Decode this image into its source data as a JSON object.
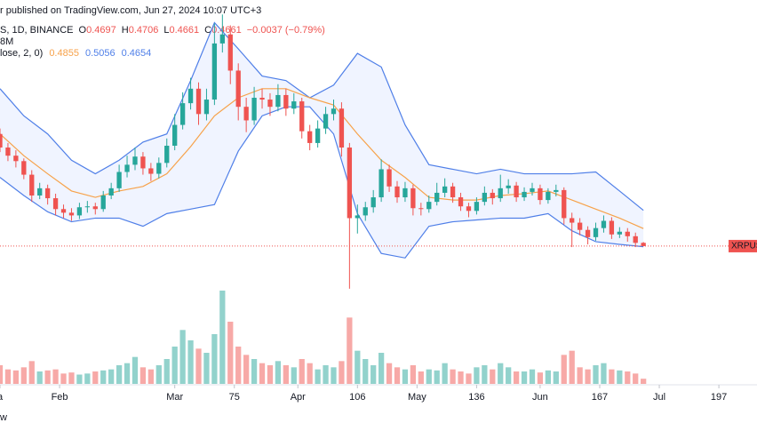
{
  "header": {
    "publish": "r published on TradingView.com, Jun 27, 2024 10:07 UTC+3",
    "symbol": "S, 1D, BINANCE",
    "ohlc": [
      {
        "label": "O",
        "value": "0.4697"
      },
      {
        "label": "H",
        "value": "0.4706"
      },
      {
        "label": "L",
        "value": "0.4661"
      },
      {
        "label": "C",
        "value": "0.4661"
      }
    ],
    "change": "−0.0037 (−0.79%)",
    "volume": "8M",
    "bb_label": "lose, 2, 0)",
    "bb_values": [
      {
        "value": "0.4855",
        "color": "#f7a24a"
      },
      {
        "value": "0.5056",
        "color": "#4f7fe8"
      },
      {
        "value": "0.4654",
        "color": "#4f7fe8"
      }
    ],
    "footer": "w"
  },
  "chart_data": {
    "type": "candlestick",
    "up_color": "#26a69a",
    "down_color": "#ef5350",
    "x": [
      16,
      18,
      20,
      22,
      24,
      26,
      28,
      30,
      32,
      34,
      36,
      38,
      40,
      42,
      44,
      46,
      48,
      50,
      52,
      54,
      56,
      58,
      60,
      62,
      64,
      66,
      68,
      70,
      72,
      74,
      76,
      78,
      80,
      82,
      84,
      86,
      88,
      90,
      92,
      94,
      96,
      98,
      100,
      102,
      104,
      106,
      108,
      110,
      112,
      114,
      116,
      118,
      120,
      122,
      124,
      126,
      128,
      130,
      132,
      134,
      136,
      138,
      140,
      142,
      144,
      146,
      148,
      150,
      152,
      154,
      156,
      158,
      160,
      162,
      164,
      166,
      168,
      170,
      172,
      174,
      176,
      178
    ],
    "ohlc": [
      [
        0.59,
        0.596,
        0.57,
        0.575
      ],
      [
        0.575,
        0.58,
        0.56,
        0.566
      ],
      [
        0.566,
        0.572,
        0.553,
        0.56
      ],
      [
        0.56,
        0.563,
        0.54,
        0.545
      ],
      [
        0.545,
        0.55,
        0.515,
        0.522
      ],
      [
        0.522,
        0.536,
        0.518,
        0.53
      ],
      [
        0.53,
        0.534,
        0.512,
        0.519
      ],
      [
        0.519,
        0.524,
        0.5,
        0.507
      ],
      [
        0.507,
        0.512,
        0.497,
        0.503
      ],
      [
        0.503,
        0.508,
        0.494,
        0.5
      ],
      [
        0.5,
        0.514,
        0.496,
        0.509
      ],
      [
        0.509,
        0.516,
        0.503,
        0.51
      ],
      [
        0.51,
        0.514,
        0.501,
        0.507
      ],
      [
        0.507,
        0.527,
        0.504,
        0.522
      ],
      [
        0.522,
        0.536,
        0.518,
        0.53
      ],
      [
        0.53,
        0.556,
        0.526,
        0.548
      ],
      [
        0.548,
        0.566,
        0.542,
        0.556
      ],
      [
        0.556,
        0.575,
        0.55,
        0.565
      ],
      [
        0.565,
        0.57,
        0.545,
        0.552
      ],
      [
        0.552,
        0.558,
        0.538,
        0.546
      ],
      [
        0.546,
        0.564,
        0.541,
        0.558
      ],
      [
        0.558,
        0.585,
        0.553,
        0.577
      ],
      [
        0.577,
        0.612,
        0.572,
        0.6
      ],
      [
        0.6,
        0.636,
        0.595,
        0.624
      ],
      [
        0.624,
        0.652,
        0.617,
        0.64
      ],
      [
        0.64,
        0.647,
        0.6,
        0.612
      ],
      [
        0.612,
        0.64,
        0.605,
        0.628
      ],
      [
        0.628,
        0.712,
        0.622,
        0.69
      ],
      [
        0.69,
        0.722,
        0.68,
        0.7
      ],
      [
        0.7,
        0.71,
        0.645,
        0.66
      ],
      [
        0.66,
        0.668,
        0.605,
        0.62
      ],
      [
        0.62,
        0.63,
        0.592,
        0.605
      ],
      [
        0.605,
        0.642,
        0.6,
        0.63
      ],
      [
        0.63,
        0.64,
        0.618,
        0.628
      ],
      [
        0.628,
        0.635,
        0.61,
        0.62
      ],
      [
        0.62,
        0.645,
        0.615,
        0.633
      ],
      [
        0.633,
        0.64,
        0.61,
        0.618
      ],
      [
        0.618,
        0.635,
        0.612,
        0.626
      ],
      [
        0.626,
        0.63,
        0.585,
        0.593
      ],
      [
        0.593,
        0.6,
        0.572,
        0.58
      ],
      [
        0.58,
        0.605,
        0.575,
        0.596
      ],
      [
        0.596,
        0.62,
        0.59,
        0.612
      ],
      [
        0.612,
        0.628,
        0.605,
        0.618
      ],
      [
        0.618,
        0.625,
        0.565,
        0.575
      ],
      [
        0.575,
        0.58,
        0.419,
        0.497
      ],
      [
        0.497,
        0.512,
        0.48,
        0.5
      ],
      [
        0.5,
        0.515,
        0.494,
        0.509
      ],
      [
        0.509,
        0.528,
        0.503,
        0.52
      ],
      [
        0.52,
        0.562,
        0.515,
        0.551
      ],
      [
        0.551,
        0.556,
        0.526,
        0.532
      ],
      [
        0.532,
        0.538,
        0.514,
        0.52
      ],
      [
        0.52,
        0.537,
        0.515,
        0.53
      ],
      [
        0.53,
        0.534,
        0.5,
        0.508
      ],
      [
        0.508,
        0.514,
        0.5,
        0.507
      ],
      [
        0.507,
        0.522,
        0.503,
        0.515
      ],
      [
        0.515,
        0.536,
        0.511,
        0.525
      ],
      [
        0.525,
        0.541,
        0.52,
        0.532
      ],
      [
        0.532,
        0.536,
        0.514,
        0.52
      ],
      [
        0.52,
        0.525,
        0.505,
        0.51
      ],
      [
        0.51,
        0.514,
        0.498,
        0.505
      ],
      [
        0.505,
        0.52,
        0.501,
        0.515
      ],
      [
        0.515,
        0.532,
        0.511,
        0.525
      ],
      [
        0.525,
        0.529,
        0.512,
        0.519
      ],
      [
        0.519,
        0.545,
        0.515,
        0.53
      ],
      [
        0.53,
        0.54,
        0.524,
        0.533
      ],
      [
        0.533,
        0.537,
        0.515,
        0.52
      ],
      [
        0.52,
        0.531,
        0.516,
        0.526
      ],
      [
        0.526,
        0.536,
        0.522,
        0.53
      ],
      [
        0.53,
        0.534,
        0.512,
        0.517
      ],
      [
        0.517,
        0.53,
        0.513,
        0.526
      ],
      [
        0.526,
        0.534,
        0.521,
        0.528
      ],
      [
        0.528,
        0.531,
        0.49,
        0.497
      ],
      [
        0.497,
        0.503,
        0.465,
        0.492
      ],
      [
        0.492,
        0.497,
        0.478,
        0.484
      ],
      [
        0.484,
        0.488,
        0.468,
        0.476
      ],
      [
        0.476,
        0.492,
        0.472,
        0.486
      ],
      [
        0.486,
        0.5,
        0.481,
        0.494
      ],
      [
        0.494,
        0.498,
        0.474,
        0.479
      ],
      [
        0.479,
        0.487,
        0.475,
        0.482
      ],
      [
        0.482,
        0.486,
        0.471,
        0.477
      ],
      [
        0.477,
        0.481,
        0.465,
        0.4697
      ],
      [
        0.4697,
        0.4706,
        0.4661,
        0.4661
      ]
    ],
    "volume": [
      900,
      700,
      650,
      800,
      1100,
      600,
      650,
      700,
      500,
      550,
      450,
      500,
      600,
      650,
      700,
      900,
      1000,
      1300,
      800,
      700,
      900,
      1200,
      1800,
      2600,
      2100,
      1700,
      1500,
      2400,
      4500,
      3000,
      1800,
      1400,
      1200,
      1000,
      900,
      1100,
      900,
      800,
      1200,
      1000,
      700,
      900,
      800,
      1100,
      3200,
      1600,
      1200,
      900,
      1500,
      1000,
      800,
      700,
      900,
      600,
      700,
      650,
      1000,
      700,
      600,
      500,
      800,
      900,
      700,
      1000,
      800,
      600,
      600,
      700,
      550,
      650,
      600,
      1400,
      1600,
      800,
      700,
      900,
      1000,
      700,
      650,
      600,
      500,
      250
    ],
    "volume_lim": [
      0,
      4500
    ],
    "bands_x": [
      16,
      22,
      28,
      34,
      40,
      46,
      52,
      58,
      64,
      70,
      76,
      82,
      88,
      94,
      100,
      106,
      112,
      118,
      124,
      130,
      136,
      142,
      148,
      154,
      160,
      166,
      172,
      178
    ],
    "bands": [
      {
        "color": "#4f7fe8",
        "values": [
          0.64,
          0.61,
          0.59,
          0.561,
          0.546,
          0.561,
          0.581,
          0.59,
          0.649,
          0.713,
          0.684,
          0.654,
          0.649,
          0.63,
          0.644,
          0.679,
          0.664,
          0.6,
          0.556,
          0.551,
          0.546,
          0.551,
          0.546,
          0.546,
          0.546,
          0.548,
          0.527,
          0.5056
        ]
      },
      {
        "color": "#f7a24a",
        "values": [
          0.59,
          0.566,
          0.546,
          0.527,
          0.52,
          0.527,
          0.532,
          0.546,
          0.576,
          0.61,
          0.63,
          0.64,
          0.64,
          0.63,
          0.622,
          0.59,
          0.561,
          0.542,
          0.52,
          0.517,
          0.517,
          0.522,
          0.524,
          0.527,
          0.517,
          0.507,
          0.497,
          0.4855
        ]
      },
      {
        "color": "#4f7fe8",
        "values": [
          0.542,
          0.522,
          0.504,
          0.493,
          0.497,
          0.497,
          0.488,
          0.502,
          0.507,
          0.512,
          0.571,
          0.61,
          0.62,
          0.62,
          0.59,
          0.502,
          0.458,
          0.453,
          0.488,
          0.493,
          0.495,
          0.497,
          0.497,
          0.502,
          0.483,
          0.471,
          0.468,
          0.4654
        ]
      }
    ],
    "band_fill": "rgba(41,98,255,0.07)",
    "last_price": 0.4661,
    "symbol_tag": "XRPUS",
    "xlim": [
      16,
      206.6
    ],
    "ylim": [
      0.414,
      0.738
    ],
    "xticks": [
      {
        "value": 16,
        "label": "a"
      },
      {
        "value": 31,
        "label": "Feb"
      },
      {
        "value": 60,
        "label": "Mar"
      },
      75,
      {
        "value": 91,
        "label": "Apr"
      },
      106,
      {
        "value": 121,
        "label": "May"
      },
      136,
      {
        "value": 152,
        "label": "Jun"
      },
      167,
      {
        "value": 182,
        "label": "Jul"
      },
      197
    ]
  }
}
